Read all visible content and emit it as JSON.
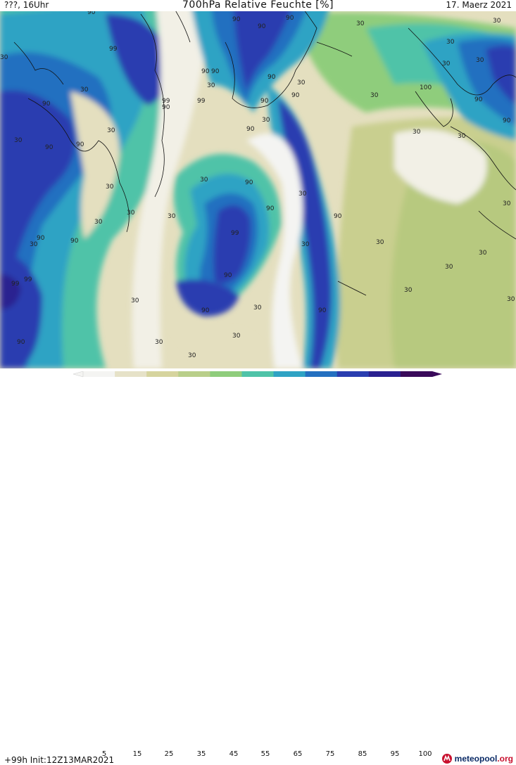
{
  "header": {
    "left_label": "???, 16Uhr",
    "title": "700hPa Relative Feuchte [%]",
    "date": "17. Maerz 2021"
  },
  "footer": {
    "run_info": "+99h Init:12Z13MAR2021",
    "brand_name": "meteopool",
    "brand_suffix": ".org"
  },
  "legend": {
    "ticks": [
      "5",
      "15",
      "25",
      "35",
      "45",
      "55",
      "65",
      "75",
      "85",
      "95",
      "100"
    ],
    "colors": [
      "#f4f4f2",
      "#e6e2c8",
      "#d6d49e",
      "#b9cf8a",
      "#8fcd7c",
      "#4fc3a8",
      "#2fa3c4",
      "#2470c0",
      "#2a3eb0",
      "#2a2090",
      "#3a0a5a"
    ]
  },
  "map": {
    "contour_labels": [
      "30",
      "90",
      "99",
      "100"
    ]
  }
}
